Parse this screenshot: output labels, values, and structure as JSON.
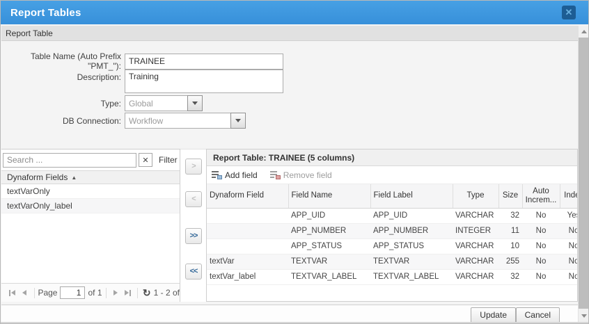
{
  "dialog": {
    "title": "Report Tables",
    "section_title": "Report Table"
  },
  "form": {
    "table_name": {
      "label": "Table Name (Auto Prefix \"PMT_\"):",
      "value": "TRAINEE"
    },
    "description": {
      "label": "Description:",
      "value": "Training"
    },
    "type": {
      "label": "Type:",
      "value": "Global"
    },
    "db_connection": {
      "label": "DB Connection:",
      "value": "Workflow"
    }
  },
  "fields_panel": {
    "search_placeholder": "Search ...",
    "clear_glyph": "✕",
    "filter_label": "Filter",
    "column_header": "Dynaform Fields",
    "sort_glyph": "▲",
    "items": [
      "textVarOnly",
      "textVarOnly_label"
    ],
    "pagination": {
      "page_label": "Page",
      "page_value": "1",
      "of_label": "of 1",
      "refresh_glyph": "↻",
      "range_label": "1 - 2 of"
    }
  },
  "transfer": {
    "add_one": ">",
    "remove_one": "<",
    "add_all": ">>",
    "remove_all": "<<"
  },
  "report_panel": {
    "header": "Report Table: TRAINEE (5 columns)",
    "toolbar": {
      "add_field": "Add field",
      "remove_field": "Remove field"
    },
    "grid": {
      "columns": [
        "Dynaform Field",
        "Field Name",
        "Field Label",
        "Type",
        "Size",
        "Auto Increm...",
        "Index"
      ],
      "rows": [
        [
          "",
          "APP_UID",
          "APP_UID",
          "VARCHAR",
          "32",
          "No",
          "Yes"
        ],
        [
          "",
          "APP_NUMBER",
          "APP_NUMBER",
          "INTEGER",
          "11",
          "No",
          "No"
        ],
        [
          "",
          "APP_STATUS",
          "APP_STATUS",
          "VARCHAR",
          "10",
          "No",
          "No"
        ],
        [
          "textVar",
          "TEXTVAR",
          "TEXTVAR",
          "VARCHAR",
          "255",
          "No",
          "No"
        ],
        [
          "textVar_label",
          "TEXTVAR_LABEL",
          "TEXTVAR_LABEL",
          "VARCHAR",
          "32",
          "No",
          "No"
        ]
      ]
    }
  },
  "footer": {
    "update_label": "Update",
    "cancel_label": "Cancel"
  },
  "colors": {
    "titlebar_blue": "#3e96de",
    "close_button_blue": "#1d5d94",
    "section_header_gray": "#e1e1e1",
    "row_stripe": "#f7f7f8",
    "enabled_transfer_text": "#2e6496",
    "disabled_text": "#9d9d9d"
  }
}
